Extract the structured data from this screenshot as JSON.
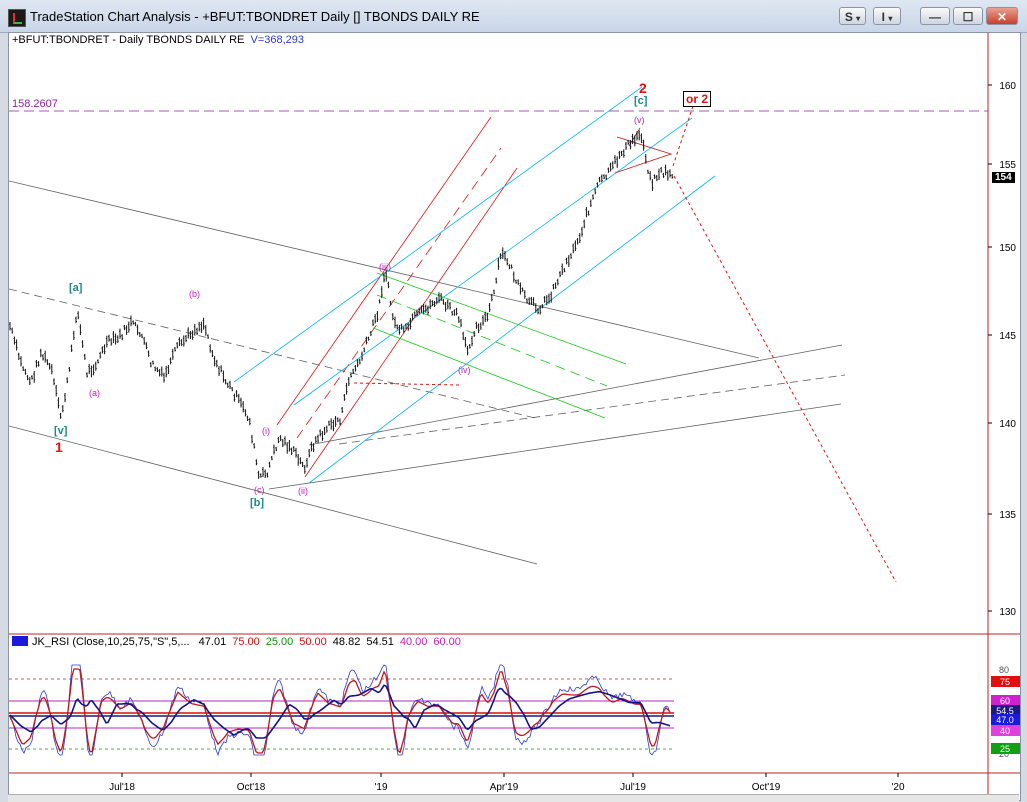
{
  "window": {
    "title": "TradeStation Chart Analysis - +BFUT:TBONDRET Daily [] TBONDS DAILY RE",
    "s_button": "S",
    "i_button": "I",
    "minimize": "—",
    "maximize": "☐",
    "close": "✕"
  },
  "chart": {
    "symbol_label": "+BFUT:TBONDRET - Daily  TBONDS DAILY RE",
    "volume_label": "V=368,293",
    "ref_level_label": "158.2607",
    "last_price_label": "154",
    "price_axis": [
      "160",
      "155",
      "150",
      "145",
      "140",
      "135",
      "130"
    ],
    "time_axis": [
      "Jul'18",
      "Oct'18",
      "'19",
      "Apr'19",
      "Jul'19",
      "Oct'19",
      "'20"
    ],
    "wave_labels": {
      "top_2": "2",
      "c_bracket": "[c]",
      "v_small": "(v)",
      "or_2": "or 2",
      "a_bracket": "[a]",
      "b_paren": "(b)",
      "a_paren": "(a)",
      "v_bracket": "[v]",
      "one": "1",
      "iii_paren": "(iii)",
      "iv_paren": "(iv)",
      "i_paren": "(i)",
      "c_paren": "(c)",
      "ii_paren": "(ii)",
      "b_bracket": "[b]"
    },
    "colors": {
      "up_channel": "#00b4f0",
      "red_channel": "#d81818",
      "green_channel": "#18c818",
      "gray_channel": "#606060",
      "ref_line": "#9020a0",
      "wave_purple": "#c020c0",
      "wave_teal": "#1a8a8a",
      "wave_red": "#e01010"
    }
  },
  "indicator": {
    "title": "JK_RSI (Close,10,25,75,\"S\",5,...",
    "values": [
      {
        "text": "47.01",
        "color": "#000000"
      },
      {
        "text": "75.00",
        "color": "#d01010"
      },
      {
        "text": "25.00",
        "color": "#109010"
      },
      {
        "text": "50.00",
        "color": "#d01010"
      },
      {
        "text": "48.82",
        "color": "#000000"
      },
      {
        "text": "54.51",
        "color": "#000000"
      },
      {
        "text": "40.00",
        "color": "#c020c0"
      },
      {
        "text": "60.00",
        "color": "#c020c0"
      }
    ],
    "axis_labels": [
      "80",
      "20"
    ],
    "badges": [
      {
        "text": "75",
        "bg": "#e01010"
      },
      {
        "text": "60",
        "bg": "#d020d0"
      },
      {
        "text": "54.5",
        "bg": "#1a1a80"
      },
      {
        "text": "47.0",
        "bg": "#1a1ae0"
      },
      {
        "text": "40",
        "bg": "#e040e0"
      },
      {
        "text": "25",
        "bg": "#10a010"
      }
    ]
  }
}
